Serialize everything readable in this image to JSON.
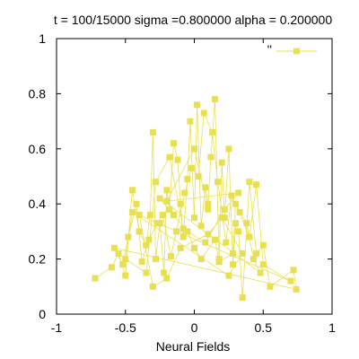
{
  "chart_data": {
    "type": "line",
    "title": "t = 100/15000 sigma =0.800000 alpha = 0.200000",
    "xlabel": "Neural Fields",
    "ylabel": "",
    "xlim": [
      -1,
      1
    ],
    "ylim": [
      0,
      1
    ],
    "x_ticks": [
      "-1",
      "-0.5",
      "0",
      "0.5",
      "1"
    ],
    "y_ticks": [
      "0",
      "0.2",
      "0.4",
      "0.6",
      "0.8",
      "1"
    ],
    "legend": {
      "placement": "top-right",
      "label": "''"
    },
    "grid": false,
    "series": [
      {
        "color": "#e8e050",
        "marker": "square",
        "x": [
          -0.72,
          -0.6,
          -0.55,
          -0.5,
          -0.45,
          -0.4,
          -0.35,
          -0.32,
          -0.3,
          -0.28,
          -0.25,
          -0.22,
          -0.2,
          -0.18,
          -0.15,
          -0.12,
          -0.1,
          -0.08,
          -0.05,
          -0.03,
          0.0,
          0.02,
          0.05,
          0.08,
          0.1,
          0.12,
          0.15,
          0.18,
          0.2,
          0.22,
          0.25,
          0.28,
          0.3,
          0.32,
          0.35,
          0.4,
          0.45,
          0.5,
          0.55,
          0.72,
          0.74,
          -0.58,
          -0.52,
          -0.48,
          -0.42,
          -0.38,
          -0.33,
          -0.27,
          -0.23,
          -0.17,
          -0.13,
          -0.07,
          -0.02,
          0.03,
          0.07,
          0.13,
          0.17,
          0.23,
          0.27,
          0.33,
          0.38,
          0.43,
          0.48,
          -0.25,
          -0.15,
          -0.05,
          0.0,
          0.05,
          0.15,
          0.18,
          0.28,
          0.3,
          0.4,
          0.45,
          0.5,
          0.7,
          -0.4,
          -0.3,
          -0.2,
          -0.1,
          0.1,
          0.2,
          0.35,
          0.25,
          -0.45,
          -0.5,
          -0.35,
          -0.28,
          -0.18,
          -0.08,
          0.08,
          0.22,
          0.32,
          -0.2,
          0.0,
          0.1
        ],
        "y": [
          0.13,
          0.17,
          0.22,
          0.14,
          0.45,
          0.3,
          0.25,
          0.36,
          0.66,
          0.2,
          0.33,
          0.15,
          0.45,
          0.38,
          0.62,
          0.56,
          0.4,
          0.28,
          0.49,
          0.7,
          0.35,
          0.76,
          0.32,
          0.46,
          0.4,
          0.57,
          0.78,
          0.2,
          0.55,
          0.35,
          0.6,
          0.18,
          0.33,
          0.3,
          0.06,
          0.48,
          0.22,
          0.25,
          0.1,
          0.16,
          0.09,
          0.24,
          0.18,
          0.28,
          0.4,
          0.19,
          0.27,
          0.33,
          0.36,
          0.21,
          0.3,
          0.44,
          0.53,
          0.5,
          0.73,
          0.66,
          0.48,
          0.26,
          0.43,
          0.37,
          0.33,
          0.2,
          0.15,
          0.42,
          0.36,
          0.3,
          0.24,
          0.2,
          0.27,
          0.19,
          0.22,
          0.4,
          0.28,
          0.47,
          0.18,
          0.12,
          0.36,
          0.1,
          0.13,
          0.24,
          0.29,
          0.35,
          0.22,
          0.14,
          0.37,
          0.2,
          0.15,
          0.48,
          0.57,
          0.31,
          0.26,
          0.38,
          0.44,
          0.41,
          0.6,
          0.38
        ]
      }
    ]
  }
}
